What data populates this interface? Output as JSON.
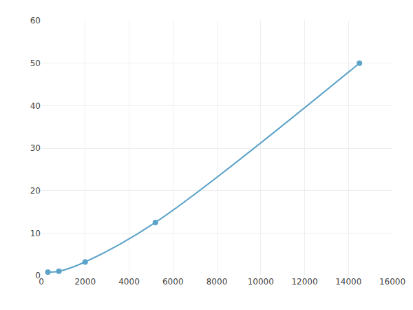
{
  "chart_data": {
    "type": "line",
    "x": [
      300,
      800,
      2000,
      5200,
      14500
    ],
    "values": [
      0.8,
      1.0,
      3.2,
      12.5,
      50.0
    ],
    "color": "#5ba3c9",
    "marker": "circle",
    "line_style": "solid",
    "xlim": [
      0,
      16000
    ],
    "ylim": [
      0,
      60
    ],
    "xticks": [
      0,
      2000,
      4000,
      6000,
      8000,
      10000,
      12000,
      14000,
      16000
    ],
    "yticks": [
      0,
      10,
      20,
      30,
      40,
      50,
      60
    ],
    "grid": true
  }
}
